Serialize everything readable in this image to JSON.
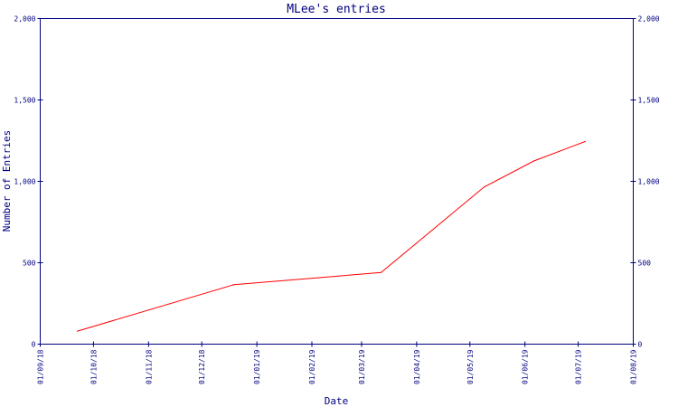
{
  "chart_data": {
    "type": "line",
    "title": "MLee's entries",
    "xlabel": "Date",
    "ylabel": "Number of Entries",
    "x_start": "2018-09-01",
    "x_end": "2019-08-01",
    "ylim": [
      0,
      2000
    ],
    "yticks": [
      0,
      500,
      1000,
      1500,
      2000
    ],
    "ytick_labels": [
      "0",
      "500",
      "1,000",
      "1,500",
      "2,000"
    ],
    "xticks": [
      "2018-09-01",
      "2018-10-01",
      "2018-11-01",
      "2018-12-01",
      "2019-01-01",
      "2019-02-01",
      "2019-03-01",
      "2019-04-01",
      "2019-05-01",
      "2019-06-01",
      "2019-07-01",
      "2019-08-01"
    ],
    "xtick_labels": [
      "01/09/18",
      "01/10/18",
      "01/11/18",
      "01/12/18",
      "01/01/19",
      "01/02/19",
      "01/03/19",
      "01/04/19",
      "01/05/19",
      "01/06/19",
      "01/07/19",
      "01/08/19"
    ],
    "grid": false,
    "series": [
      {
        "color": "#ff0000",
        "points": [
          {
            "x": "2018-09-22",
            "y": 80
          },
          {
            "x": "2018-12-19",
            "y": 365
          },
          {
            "x": "2019-03-12",
            "y": 440
          },
          {
            "x": "2019-05-09",
            "y": 965
          },
          {
            "x": "2019-06-06",
            "y": 1125
          },
          {
            "x": "2019-07-05",
            "y": 1245
          }
        ]
      }
    ],
    "colors": {
      "axis": "#000080",
      "text": "#000080",
      "background": "#ffffff"
    }
  }
}
